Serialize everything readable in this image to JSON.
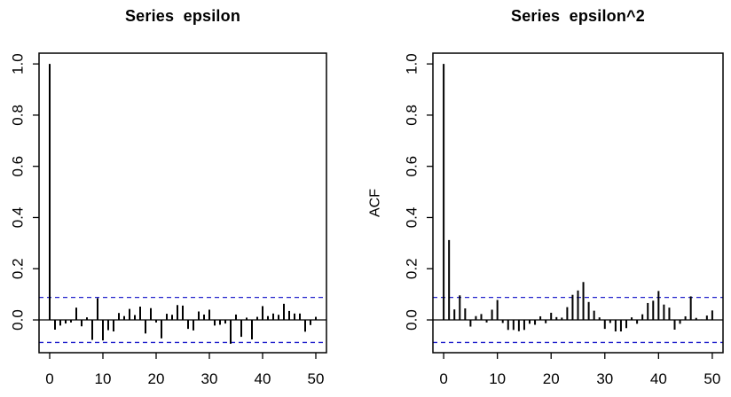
{
  "figure": {
    "background": "#ffffff"
  },
  "colors": {
    "bar": "#000000",
    "axis": "#000000",
    "confidence_line": "#2222cc",
    "title": "#000000"
  },
  "chart_data": [
    {
      "type": "bar",
      "title": "Series  epsilon",
      "xlabel": "",
      "ylabel": "",
      "legend": null,
      "grid": false,
      "x_tick_labels": [
        "0",
        "10",
        "20",
        "30",
        "40",
        "50"
      ],
      "x_tick_values": [
        0,
        10,
        20,
        30,
        40,
        50
      ],
      "y_tick_labels": [
        "0.0",
        "0.2",
        "0.4",
        "0.6",
        "0.8",
        "1.0"
      ],
      "y_tick_values": [
        0,
        0.2,
        0.4,
        0.6,
        0.8,
        1.0
      ],
      "xlim": [
        -2,
        52
      ],
      "ylim": [
        -0.128,
        1.042
      ],
      "confidence_bound": 0.088,
      "confidence_line_style": "dashed",
      "lags": [
        0,
        1,
        2,
        3,
        4,
        5,
        6,
        7,
        8,
        9,
        10,
        11,
        12,
        13,
        14,
        15,
        16,
        17,
        18,
        19,
        20,
        21,
        22,
        23,
        24,
        25,
        26,
        27,
        28,
        29,
        30,
        31,
        32,
        33,
        34,
        35,
        36,
        37,
        38,
        39,
        40,
        41,
        42,
        43,
        44,
        45,
        46,
        47,
        48,
        49,
        50
      ],
      "values": [
        1.0,
        -0.038,
        -0.022,
        -0.014,
        -0.01,
        0.048,
        -0.025,
        0.01,
        -0.078,
        0.085,
        -0.08,
        -0.04,
        -0.045,
        0.027,
        0.015,
        0.043,
        0.019,
        0.052,
        -0.053,
        0.046,
        -0.01,
        -0.072,
        0.024,
        0.02,
        0.058,
        0.056,
        -0.035,
        -0.041,
        0.033,
        0.021,
        0.04,
        -0.022,
        -0.019,
        -0.014,
        -0.093,
        0.021,
        -0.066,
        0.009,
        -0.076,
        0.012,
        0.054,
        0.015,
        0.025,
        0.02,
        0.063,
        0.035,
        0.025,
        0.025,
        -0.046,
        -0.02,
        0.012
      ]
    },
    {
      "type": "bar",
      "title": "Series  epsilon^2",
      "xlabel": "",
      "ylabel": "ACF",
      "legend": null,
      "grid": false,
      "x_tick_labels": [
        "0",
        "10",
        "20",
        "30",
        "40",
        "50"
      ],
      "x_tick_values": [
        0,
        10,
        20,
        30,
        40,
        50
      ],
      "y_tick_labels": [
        "0.0",
        "0.2",
        "0.4",
        "0.6",
        "0.8",
        "1.0"
      ],
      "y_tick_values": [
        0,
        0.2,
        0.4,
        0.6,
        0.8,
        1.0
      ],
      "xlim": [
        -2,
        52
      ],
      "ylim": [
        -0.128,
        1.042
      ],
      "confidence_bound": 0.088,
      "confidence_line_style": "dashed",
      "lags": [
        0,
        1,
        2,
        3,
        4,
        5,
        6,
        7,
        8,
        9,
        10,
        11,
        12,
        13,
        14,
        15,
        16,
        17,
        18,
        19,
        20,
        21,
        22,
        23,
        24,
        25,
        26,
        27,
        28,
        29,
        30,
        31,
        32,
        33,
        34,
        35,
        36,
        37,
        38,
        39,
        40,
        41,
        42,
        43,
        44,
        45,
        46,
        47,
        48,
        49,
        50
      ],
      "values": [
        1.0,
        0.312,
        0.041,
        0.096,
        0.045,
        -0.026,
        0.015,
        0.023,
        -0.01,
        0.04,
        0.078,
        -0.012,
        -0.039,
        -0.039,
        -0.044,
        -0.039,
        -0.015,
        -0.019,
        0.014,
        -0.013,
        0.028,
        0.011,
        0.009,
        0.05,
        0.098,
        0.115,
        0.148,
        0.07,
        0.036,
        0.01,
        -0.035,
        -0.012,
        -0.045,
        -0.045,
        -0.032,
        0.01,
        -0.015,
        0.022,
        0.066,
        0.075,
        0.113,
        0.06,
        0.048,
        -0.038,
        -0.015,
        0.014,
        0.092,
        0.008,
        0.002,
        0.017,
        0.037
      ]
    }
  ]
}
